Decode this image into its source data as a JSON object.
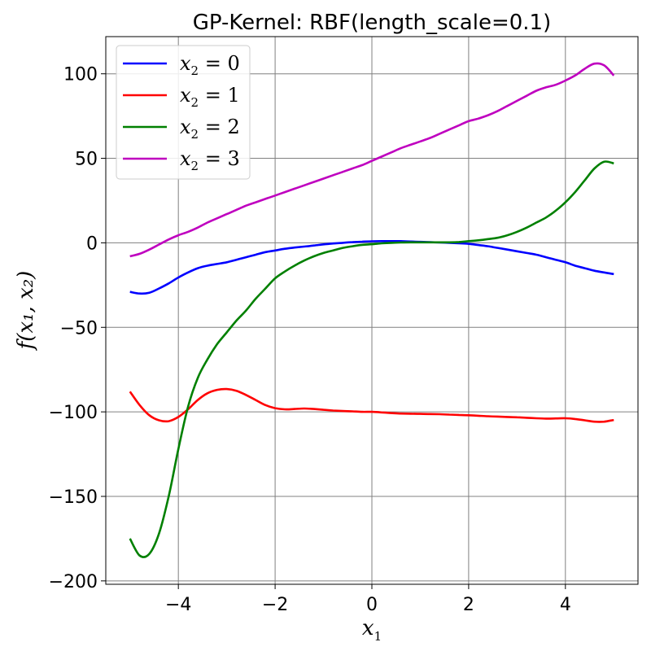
{
  "chart_data": {
    "type": "line",
    "title": "GP-Kernel: RBF(length_scale=0.1)",
    "xlabel": "x",
    "xlabel_sub": "1",
    "ylabel": "f(x₁, x₂)",
    "xlim": [
      -5.5,
      5.5
    ],
    "ylim": [
      -202,
      122
    ],
    "xticks": [
      -4,
      -2,
      0,
      2,
      4
    ],
    "xtick_labels": [
      "−4",
      "−2",
      "0",
      "2",
      "4"
    ],
    "yticks": [
      -200,
      -150,
      -100,
      -50,
      0,
      50,
      100
    ],
    "ytick_labels": [
      "−200",
      "−150",
      "−100",
      "−50",
      "0",
      "50",
      "100"
    ],
    "grid": true,
    "legend_position": "top-left",
    "series": [
      {
        "name": "x₂ = 0",
        "legend_main": "x",
        "legend_sub": "2",
        "legend_rest": " = 0",
        "color": "#0000ff",
        "x": [
          -5,
          -4.8,
          -4.6,
          -4.4,
          -4.2,
          -4,
          -3.8,
          -3.6,
          -3.4,
          -3.2,
          -3,
          -2.8,
          -2.6,
          -2.4,
          -2.2,
          -2,
          -1.8,
          -1.6,
          -1.4,
          -1.2,
          -1,
          -0.8,
          -0.6,
          -0.4,
          -0.2,
          0,
          0.2,
          0.4,
          0.6,
          0.8,
          1,
          1.2,
          1.4,
          1.6,
          1.8,
          2,
          2.2,
          2.4,
          2.6,
          2.8,
          3,
          3.2,
          3.4,
          3.6,
          3.8,
          4,
          4.2,
          4.4,
          4.6,
          4.8,
          5
        ],
        "y": [
          -29,
          -30,
          -29.5,
          -27,
          -24,
          -20.5,
          -17.5,
          -15,
          -13.5,
          -12.5,
          -11.5,
          -10,
          -8.5,
          -7,
          -5.5,
          -4.5,
          -3.5,
          -2.8,
          -2.2,
          -1.6,
          -0.9,
          -0.4,
          0,
          0.4,
          0.7,
          0.9,
          1,
          1,
          1,
          0.8,
          0.6,
          0.4,
          0.2,
          0,
          -0.3,
          -0.6,
          -1.3,
          -2,
          -3,
          -4,
          -5,
          -6,
          -7,
          -8.5,
          -10,
          -11.5,
          -13.5,
          -15,
          -16.5,
          -17.5,
          -18.5
        ]
      },
      {
        "name": "x₂ = 1",
        "legend_main": "x",
        "legend_sub": "2",
        "legend_rest": " = 1",
        "color": "#ff0000",
        "x": [
          -5,
          -4.8,
          -4.6,
          -4.4,
          -4.2,
          -4,
          -3.8,
          -3.6,
          -3.4,
          -3.2,
          -3,
          -2.8,
          -2.6,
          -2.4,
          -2.2,
          -2,
          -1.8,
          -1.6,
          -1.4,
          -1.2,
          -1,
          -0.8,
          -0.6,
          -0.4,
          -0.2,
          0,
          0.2,
          0.4,
          0.6,
          0.8,
          1,
          1.2,
          1.4,
          1.6,
          1.8,
          2,
          2.2,
          2.4,
          2.6,
          2.8,
          3,
          3.2,
          3.4,
          3.6,
          3.8,
          4,
          4.2,
          4.4,
          4.6,
          4.8,
          5
        ],
        "y": [
          -88,
          -96,
          -102,
          -105,
          -105.5,
          -103,
          -98.5,
          -93,
          -89,
          -87,
          -86.5,
          -87.5,
          -90,
          -93,
          -96,
          -97.8,
          -98.5,
          -98.3,
          -98,
          -98.3,
          -98.8,
          -99.2,
          -99.5,
          -99.7,
          -100,
          -100,
          -100.3,
          -100.7,
          -101,
          -101.1,
          -101.2,
          -101.3,
          -101.4,
          -101.6,
          -101.8,
          -102,
          -102.3,
          -102.6,
          -102.8,
          -103,
          -103.2,
          -103.5,
          -103.8,
          -104,
          -103.9,
          -103.8,
          -104.2,
          -105,
          -105.8,
          -105.8,
          -104.8
        ]
      },
      {
        "name": "x₂ = 2",
        "legend_main": "x",
        "legend_sub": "2",
        "legend_rest": " = 2",
        "color": "#008000",
        "x": [
          -5,
          -4.8,
          -4.6,
          -4.4,
          -4.2,
          -4,
          -3.8,
          -3.6,
          -3.4,
          -3.2,
          -3,
          -2.8,
          -2.6,
          -2.4,
          -2.2,
          -2,
          -1.8,
          -1.6,
          -1.4,
          -1.2,
          -1,
          -0.8,
          -0.6,
          -0.4,
          -0.2,
          0,
          0.2,
          0.4,
          0.6,
          0.8,
          1,
          1.2,
          1.4,
          1.6,
          1.8,
          2,
          2.2,
          2.4,
          2.6,
          2.8,
          3,
          3.2,
          3.4,
          3.6,
          3.8,
          4,
          4.2,
          4.4,
          4.6,
          4.8,
          5
        ],
        "y": [
          -175,
          -185,
          -184,
          -172,
          -150,
          -122,
          -97,
          -80,
          -69,
          -60,
          -53,
          -46,
          -40,
          -33,
          -27,
          -21,
          -17,
          -13.5,
          -10.5,
          -8,
          -6,
          -4.5,
          -3,
          -2,
          -1.2,
          -0.8,
          -0.3,
          0,
          0.2,
          0.3,
          0.3,
          0.3,
          0.3,
          0.3,
          0.5,
          1,
          1.5,
          2.2,
          3,
          4.5,
          6.5,
          9,
          12,
          15,
          19,
          24,
          30,
          37,
          44,
          48,
          47
        ]
      },
      {
        "name": "x₂ = 3",
        "legend_main": "x",
        "legend_sub": "2",
        "legend_rest": " = 3",
        "color": "#bf00bf",
        "x": [
          -5,
          -4.8,
          -4.6,
          -4.4,
          -4.2,
          -4,
          -3.8,
          -3.6,
          -3.4,
          -3.2,
          -3,
          -2.8,
          -2.6,
          -2.4,
          -2.2,
          -2,
          -1.8,
          -1.6,
          -1.4,
          -1.2,
          -1,
          -0.8,
          -0.6,
          -0.4,
          -0.2,
          0,
          0.2,
          0.4,
          0.6,
          0.8,
          1,
          1.2,
          1.4,
          1.6,
          1.8,
          2,
          2.2,
          2.4,
          2.6,
          2.8,
          3,
          3.2,
          3.4,
          3.6,
          3.8,
          4,
          4.2,
          4.4,
          4.6,
          4.8,
          5
        ],
        "y": [
          -8,
          -6.5,
          -4,
          -1,
          2,
          4.5,
          6.5,
          9,
          12,
          14.5,
          17,
          19.5,
          22,
          24,
          26,
          28,
          30,
          32,
          34,
          36,
          38,
          40,
          42,
          44,
          46,
          48.5,
          51,
          53.5,
          56,
          58,
          60,
          62,
          64.5,
          67,
          69.5,
          72,
          73.5,
          75.5,
          78,
          81,
          84,
          87,
          90,
          92,
          93.5,
          96,
          99,
          103,
          106,
          105,
          99
        ]
      }
    ]
  }
}
